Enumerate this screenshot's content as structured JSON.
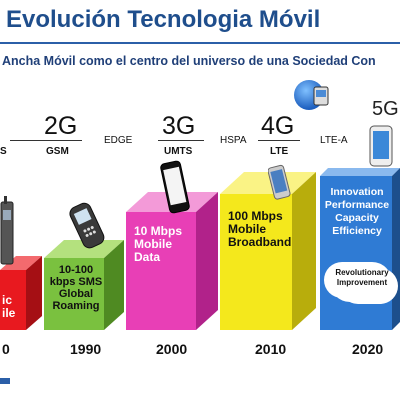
{
  "title": "Evolución Tecnologia Móvil",
  "subtitle": "Ancha Móvil como el centro del universo de una Sociedad Con",
  "generations": [
    {
      "label": "2G",
      "tech": "GSM"
    },
    {
      "label": "3G",
      "tech": "UMTS"
    },
    {
      "label": "4G",
      "tech": "LTE"
    }
  ],
  "fiveg": "5G",
  "left_edge_tech": "S",
  "transitions": [
    "EDGE",
    "HSPA",
    "LTE-A"
  ],
  "years": [
    "0",
    "1990",
    "2000",
    "2010",
    "2020"
  ],
  "blocks": [
    {
      "lines": [
        "ic",
        "ile"
      ],
      "color": "#e8191f"
    },
    {
      "lines": [
        "10-100",
        "kbps SMS",
        "Global",
        "Roaming"
      ],
      "color": "#7ac13f"
    },
    {
      "lines": [
        "10 Mbps",
        "Mobile",
        "Data"
      ],
      "color": "#e83fb6"
    },
    {
      "lines": [
        "100 Mbps",
        "Mobile",
        "Broadband"
      ],
      "color": "#f4e81c"
    },
    {
      "lines": [
        "Innovation",
        "Performance",
        "Capacity",
        "Efficiency"
      ],
      "color": "#2f7bd4"
    }
  ],
  "cloud_text": [
    "Revolutionary",
    "Improvement"
  ],
  "icons": [
    "brick-phone-icon",
    "feature-phone-icon",
    "smartphone-icon",
    "tablet-phone-icon",
    "globe-phone-icon"
  ]
}
